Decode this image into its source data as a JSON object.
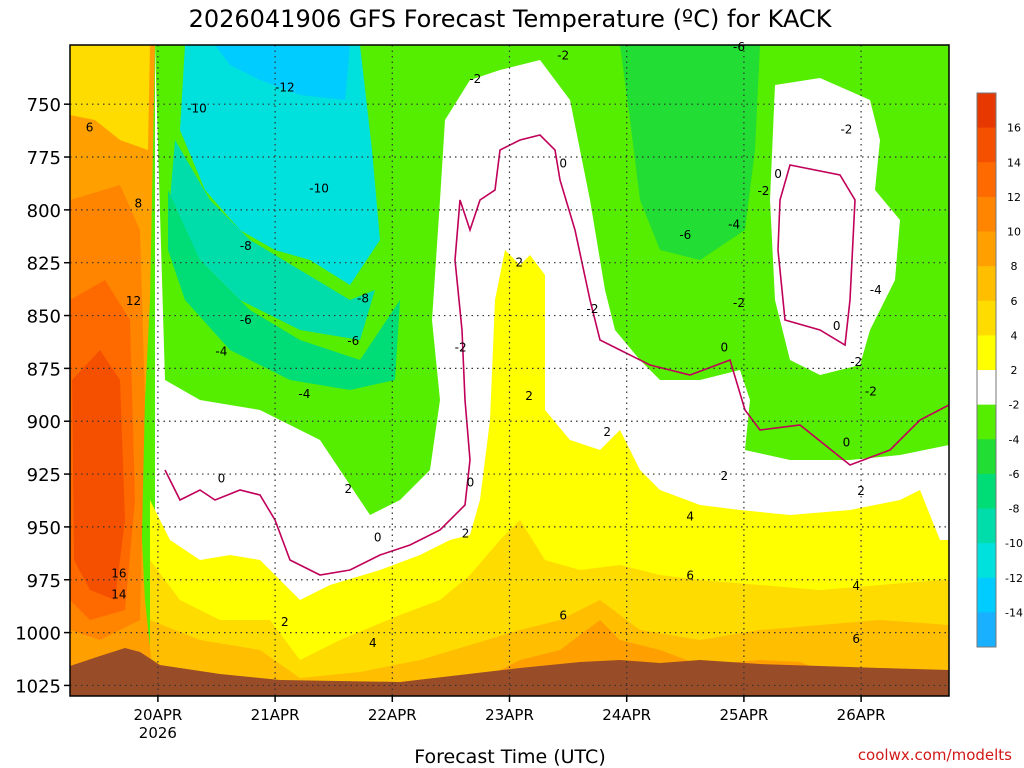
{
  "chart_data": {
    "type": "heatmap",
    "title": "2026041906 GFS Forecast Temperature (ºC) for KACK",
    "xlabel": "Forecast Time (UTC)",
    "ylabel": "",
    "credit": "coolwx.com/modelts",
    "x_ticks": [
      {
        "label": "20APR",
        "sub": "2026",
        "hours": 18
      },
      {
        "label": "21APR",
        "sub": "",
        "hours": 42
      },
      {
        "label": "22APR",
        "sub": "",
        "hours": 66
      },
      {
        "label": "23APR",
        "sub": "",
        "hours": 90
      },
      {
        "label": "24APR",
        "sub": "",
        "hours": 114
      },
      {
        "label": "25APR",
        "sub": "",
        "hours": 138
      },
      {
        "label": "26APR",
        "sub": "",
        "hours": 162
      }
    ],
    "xlim": [
      0,
      180
    ],
    "y_ticks": [
      750,
      775,
      800,
      825,
      850,
      875,
      900,
      925,
      950,
      975,
      1000,
      1025
    ],
    "ylim": [
      722,
      1030
    ],
    "colorbar": {
      "ticks": [
        16,
        14,
        12,
        10,
        8,
        6,
        4,
        2,
        -2,
        -4,
        -6,
        -8,
        -10,
        -12,
        -14
      ],
      "bins": [
        {
          "min": 16,
          "max": 18,
          "color": "#e63800"
        },
        {
          "min": 14,
          "max": 16,
          "color": "#f55000"
        },
        {
          "min": 12,
          "max": 14,
          "color": "#ff6a00"
        },
        {
          "min": 10,
          "max": 12,
          "color": "#ff8400"
        },
        {
          "min": 8,
          "max": 10,
          "color": "#ffa000"
        },
        {
          "min": 6,
          "max": 8,
          "color": "#ffbe00"
        },
        {
          "min": 4,
          "max": 6,
          "color": "#ffdc00"
        },
        {
          "min": 2,
          "max": 4,
          "color": "#ffff00"
        },
        {
          "min": -2,
          "max": 2,
          "color": "#ffffff"
        },
        {
          "min": -4,
          "max": -2,
          "color": "#55ee00"
        },
        {
          "min": -6,
          "max": -4,
          "color": "#22dd33"
        },
        {
          "min": -8,
          "max": -6,
          "color": "#00dd77"
        },
        {
          "min": -10,
          "max": -8,
          "color": "#00ddaa"
        },
        {
          "min": -12,
          "max": -10,
          "color": "#00e0dd"
        },
        {
          "min": -14,
          "max": -12,
          "color": "#00ccff"
        },
        {
          "min": -16,
          "max": -14,
          "color": "#18b0ff"
        }
      ],
      "ground_color": "#994c28"
    },
    "contour_labels": [
      {
        "text": "-12",
        "hours": 44,
        "p": 742
      },
      {
        "text": "-10",
        "hours": 26,
        "p": 752
      },
      {
        "text": "-10",
        "hours": 51,
        "p": 790
      },
      {
        "text": "-8",
        "hours": 36,
        "p": 817
      },
      {
        "text": "-8",
        "hours": 60,
        "p": 842
      },
      {
        "text": "-6",
        "hours": 36,
        "p": 852
      },
      {
        "text": "-6",
        "hours": 58,
        "p": 862
      },
      {
        "text": "-4",
        "hours": 31,
        "p": 867
      },
      {
        "text": "-4",
        "hours": 48,
        "p": 887
      },
      {
        "text": "-2",
        "hours": 83,
        "p": 738
      },
      {
        "text": "-2",
        "hours": 101,
        "p": 727
      },
      {
        "text": "-6",
        "hours": 137,
        "p": 723
      },
      {
        "text": "-2",
        "hours": 159,
        "p": 762
      },
      {
        "text": "-2",
        "hours": 142,
        "p": 791
      },
      {
        "text": "-4",
        "hours": 136,
        "p": 807
      },
      {
        "text": "-6",
        "hours": 126,
        "p": 812
      },
      {
        "text": "-4",
        "hours": 165,
        "p": 838
      },
      {
        "text": "-2",
        "hours": 137,
        "p": 844
      },
      {
        "text": "-2",
        "hours": 107,
        "p": 847
      },
      {
        "text": "-2",
        "hours": 80,
        "p": 865
      },
      {
        "text": "-2",
        "hours": 161,
        "p": 872
      },
      {
        "text": "-2",
        "hours": 164,
        "p": 886
      },
      {
        "text": "0",
        "hours": 101,
        "p": 778
      },
      {
        "text": "0",
        "hours": 145,
        "p": 783
      },
      {
        "text": "0",
        "hours": 157,
        "p": 855
      },
      {
        "text": "0",
        "hours": 134,
        "p": 865
      },
      {
        "text": "0",
        "hours": 159,
        "p": 910
      },
      {
        "text": "0",
        "hours": 31,
        "p": 927
      },
      {
        "text": "0",
        "hours": 63,
        "p": 955
      },
      {
        "text": "0",
        "hours": 82,
        "p": 929
      },
      {
        "text": "2",
        "hours": 92,
        "p": 825
      },
      {
        "text": "2",
        "hours": 94,
        "p": 888
      },
      {
        "text": "2",
        "hours": 110,
        "p": 905
      },
      {
        "text": "2",
        "hours": 134,
        "p": 926
      },
      {
        "text": "2",
        "hours": 57,
        "p": 932
      },
      {
        "text": "2",
        "hours": 81,
        "p": 953
      },
      {
        "text": "2",
        "hours": 44,
        "p": 995
      },
      {
        "text": "2",
        "hours": 162,
        "p": 933
      },
      {
        "text": "4",
        "hours": 127,
        "p": 945
      },
      {
        "text": "4",
        "hours": 62,
        "p": 1005
      },
      {
        "text": "4",
        "hours": 161,
        "p": 978
      },
      {
        "text": "6",
        "hours": 4,
        "p": 761
      },
      {
        "text": "6",
        "hours": 101,
        "p": 992
      },
      {
        "text": "6",
        "hours": 127,
        "p": 973
      },
      {
        "text": "6",
        "hours": 161,
        "p": 1003
      },
      {
        "text": "8",
        "hours": 14,
        "p": 797
      },
      {
        "text": "12",
        "hours": 13,
        "p": 843
      },
      {
        "text": "16",
        "hours": 10,
        "p": 972
      },
      {
        "text": "14",
        "hours": 10,
        "p": 982
      }
    ]
  }
}
